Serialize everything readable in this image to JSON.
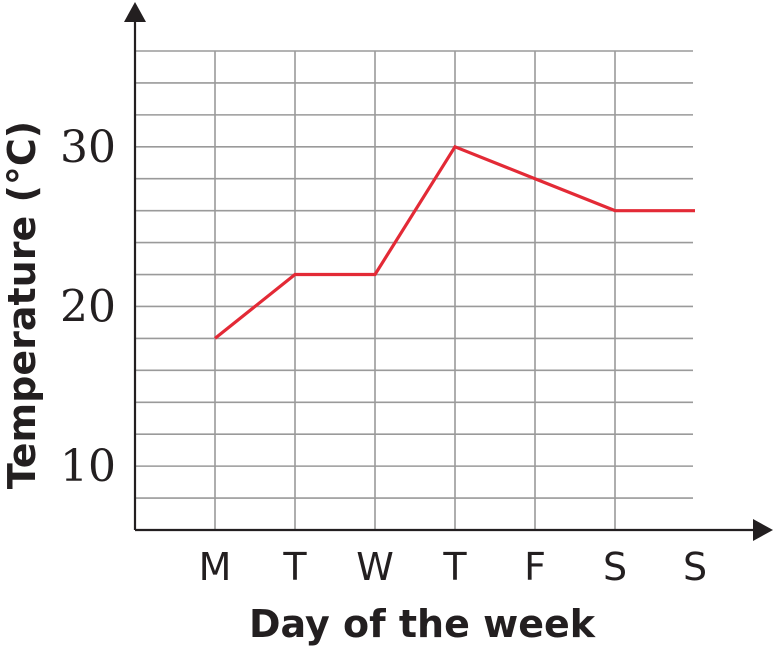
{
  "chart_data": {
    "type": "line",
    "title": "",
    "xlabel": "Day of the week",
    "ylabel": "Temperature (°C)",
    "categories": [
      "M",
      "T",
      "W",
      "T",
      "F",
      "S",
      "S"
    ],
    "series": [
      {
        "values": [
          18,
          22,
          22,
          30,
          28,
          26,
          26
        ],
        "color": "#e32a36"
      }
    ],
    "ylim": [
      6,
      36
    ],
    "yticks": [
      10,
      20,
      30
    ],
    "ytick_labels": [
      "10",
      "20",
      "30"
    ],
    "grid": true,
    "grid_y_step": 2,
    "axis_color": "#231f20",
    "grid_color": "#9a9a9a"
  }
}
